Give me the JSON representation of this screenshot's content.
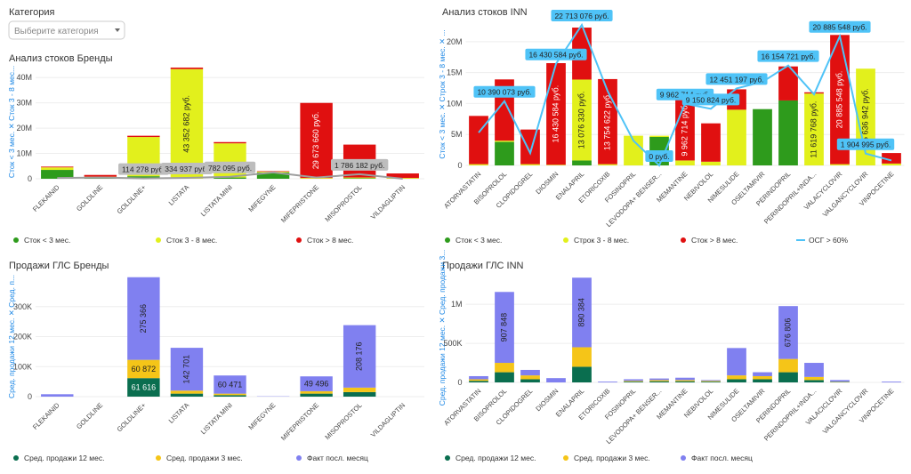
{
  "filter": {
    "label": "Категория",
    "placeholder": "Выберите категория"
  },
  "chart_data": [
    {
      "type": "bar",
      "stacked": true,
      "title": "Анализ стоков Бренды",
      "y_label": "Сток < 3 мес. ✕ Сток 3 - 8 мес...",
      "categories": [
        "FLEKAINID",
        "GOLDLINE",
        "GOLDLINE+",
        "LISTATA",
        "LISTATA MINI",
        "MIFEGYNE",
        "MIFEPRISTONE",
        "MISOPROSTOL",
        "VILDAGLIPTIN"
      ],
      "ylim": [
        0,
        45000000
      ],
      "yticks": [
        0,
        {
          "value": 10000000,
          "label": "10M"
        },
        {
          "value": 20000000,
          "label": "20M"
        },
        {
          "value": 30000000,
          "label": "30M"
        },
        {
          "value": 40000000,
          "label": "40M"
        }
      ],
      "grid": true,
      "legend": "bottom",
      "series": [
        {
          "name": "Сток < 3 мес.",
          "color": "#2e9b1c",
          "values": [
            3500000,
            300000,
            1000000,
            0,
            500000,
            2500000,
            0,
            200000,
            0
          ]
        },
        {
          "name": "Сток 3 - 8 мес.",
          "color": "#e2f01c",
          "values": [
            1000000,
            500000,
            15500000,
            43352682,
            13500000,
            300000,
            300000,
            300000,
            300000
          ],
          "value_labels": [
            null,
            null,
            null,
            "43 352 682 руб.",
            null,
            null,
            null,
            null,
            null
          ]
        },
        {
          "name": "Сток > 8 мес.",
          "color": "#e01010",
          "values": [
            300000,
            700000,
            500000,
            600000,
            500000,
            200000,
            29673660,
            13000000,
            1800000
          ],
          "value_labels": [
            null,
            null,
            null,
            null,
            null,
            null,
            "29 673 660 руб.",
            null,
            null
          ]
        },
        {
          "type": "line",
          "color": "#9e9e9e",
          "values": [
            300000,
            500000,
            114278,
            334937,
            782095,
            2500000,
            500000,
            1786182,
            0
          ],
          "value_labels": [
            null,
            null,
            "114 278 руб.",
            "334 937 руб.",
            "782 095 руб.",
            null,
            null,
            "1 786 182 руб.",
            null
          ]
        }
      ]
    },
    {
      "type": "bar",
      "stacked": true,
      "title": "Анализ стоков INN",
      "y_label": "Сток < 3 мес. ✕ Строк 3 - 8 мес. ✕ ...",
      "categories": [
        "ATORVASTATIN",
        "BISOPROLOL",
        "CLOPIDOGREL",
        "DIOSMIN",
        "ENALAPRIL",
        "ETORICOXIB",
        "FOSINOPRIL",
        "LEVODOPA+ BENSER...",
        "MEMANTINE",
        "NEBIVOLOL",
        "NIMESULIDE",
        "OSELTAMIVIR",
        "PERINDOPRIL",
        "PERINDOPRIL+INDA...",
        "VALACYCLOVIR",
        "VALGANCYCLOVIR",
        "VINPOCETINE"
      ],
      "ylim": [
        0,
        23000000
      ],
      "yticks": [
        0,
        {
          "value": 5000000,
          "label": "5M"
        },
        {
          "value": 10000000,
          "label": "10M"
        },
        {
          "value": 15000000,
          "label": "15M"
        },
        {
          "value": 20000000,
          "label": "20M"
        }
      ],
      "grid": true,
      "legend": "bottom",
      "series": [
        {
          "name": "Сток < 3 мес.",
          "color": "#2e9b1c",
          "values": [
            0,
            3800000,
            0,
            0,
            800000,
            0,
            0,
            4600000,
            0,
            0,
            0,
            9100000,
            10500000,
            0,
            0,
            0,
            0
          ]
        },
        {
          "name": "Строк 3 - 8 мес.",
          "color": "#e2f01c",
          "values": [
            200000,
            200000,
            200000,
            100000,
            13076330,
            200000,
            4800000,
            200000,
            800000,
            600000,
            9000000,
            0,
            0,
            11619768,
            200000,
            15636942,
            300000
          ],
          "value_labels": [
            null,
            null,
            null,
            null,
            "13 076 330 руб.",
            null,
            null,
            null,
            null,
            null,
            null,
            null,
            null,
            "11 619 768 руб.",
            null,
            "15 636 942 руб.",
            null
          ]
        },
        {
          "name": "Сток > 8 мес.",
          "color": "#e01010",
          "values": [
            7800000,
            9900000,
            5600000,
            16430584,
            8400000,
            13754622,
            0,
            0,
            9962714,
            6200000,
            3300000,
            0,
            5500000,
            200000,
            20885548,
            0,
            1700000
          ],
          "value_labels": [
            null,
            null,
            null,
            "16 430 584 руб.",
            null,
            "13 754 622 руб.",
            null,
            null,
            "9 962 714 руб.",
            null,
            null,
            null,
            null,
            null,
            "20 885 548 руб.",
            null,
            null
          ]
        },
        {
          "type": "line",
          "name": "ОСГ > 60%",
          "color": "#4fc3f7",
          "values": [
            5300000,
            10390073,
            2000000,
            16430584,
            22713076,
            12000000,
            4000000,
            0,
            9962714,
            9150824,
            12451197,
            13500000,
            16154721,
            11500000,
            20885548,
            1904995,
            800000
          ],
          "value_labels": [
            null,
            "10 390 073 руб.",
            null,
            "16 430 584 руб.",
            "22 713 076 руб.",
            null,
            null,
            "0 руб.",
            "9 962 714 руб.",
            "9 150 824 руб.",
            "12 451 197 руб.",
            null,
            "16 154 721 руб.",
            null,
            "20 885 548 руб.",
            "1 904 995 руб.",
            null
          ]
        }
      ]
    },
    {
      "type": "bar",
      "stacked": true,
      "title": "Продажи ГЛС Бренды",
      "y_label": "Сред. продажи 12 мес. ✕ Сред. п...",
      "categories": [
        "FLEKAINID",
        "GOLDLINE",
        "GOLDLINE+",
        "LISTATA",
        "LISTATA MINI",
        "MIFEGYNE",
        "MIFEPRISTONE",
        "MISOPROSTOL",
        "VILDAGLIPTIN"
      ],
      "ylim": [
        0,
        400000
      ],
      "yticks": [
        0,
        {
          "value": 100000,
          "label": "100K"
        },
        {
          "value": 200000,
          "label": "200K"
        },
        {
          "value": 300000,
          "label": "300K"
        }
      ],
      "grid": true,
      "legend": "bottom",
      "series": [
        {
          "name": "Сред. продажи 12 мес.",
          "color": "#0a6e4f",
          "values": [
            0,
            0,
            61616,
            10000,
            5000,
            0,
            10000,
            15000,
            0
          ],
          "value_labels": [
            null,
            null,
            "61 616",
            null,
            null,
            null,
            null,
            null,
            null
          ]
        },
        {
          "name": "Сред. продажи 3 мес.",
          "color": "#f5c518",
          "values": [
            0,
            0,
            60872,
            10000,
            5000,
            0,
            8000,
            15000,
            0
          ],
          "value_labels": [
            null,
            null,
            "60 872",
            null,
            null,
            null,
            null,
            null,
            null
          ]
        },
        {
          "name": "Факт посл. месяц",
          "color": "#8080f0",
          "values": [
            8000,
            0,
            275366,
            142701,
            60471,
            1000,
            49496,
            208176,
            0
          ],
          "value_labels": [
            null,
            null,
            "275 366",
            "142 701",
            "60 471",
            null,
            "49 496",
            "208 176",
            null
          ]
        }
      ]
    },
    {
      "type": "bar",
      "stacked": true,
      "title": "Продажи ГЛС INN",
      "y_label": "Сред. продажи 12 мес. ✕ Сред. продажи 3...",
      "categories": [
        "ATORVASTATIN",
        "BISOPROLOL",
        "CLOPIDOGREL",
        "DIOSMIN",
        "ENALAPRIL",
        "ETORICOXIB",
        "FOSINOPRIL",
        "LEVODOPA+ BENSER...",
        "MEMANTINE",
        "NEBIVOLOL",
        "NIMESULIDE",
        "OSELTAMIVIR",
        "PERINDOPRIL",
        "PERINDOPRIL+INDA...",
        "VALACICLOVIR",
        "VALGANCYCLOVIR",
        "VINPOCETINE"
      ],
      "ylim": [
        0,
        1400000
      ],
      "yticks": [
        0,
        {
          "value": 500000,
          "label": "500K"
        },
        {
          "value": 1000000,
          "label": "1M"
        }
      ],
      "grid": true,
      "legend": "bottom",
      "series": [
        {
          "name": "Сред. продажи 12 мес.",
          "color": "#0a6e4f",
          "values": [
            20000,
            130000,
            40000,
            0,
            200000,
            0,
            10000,
            15000,
            15000,
            10000,
            40000,
            40000,
            130000,
            30000,
            5000,
            0,
            0
          ]
        },
        {
          "name": "Сред. продажи 3 мес.",
          "color": "#f5c518",
          "values": [
            20000,
            120000,
            50000,
            0,
            250000,
            0,
            10000,
            15000,
            15000,
            10000,
            50000,
            40000,
            170000,
            40000,
            5000,
            0,
            0
          ]
        },
        {
          "name": "Факт посл. месяц",
          "color": "#8080f0",
          "values": [
            40000,
            907848,
            70000,
            55000,
            890384,
            10000,
            20000,
            20000,
            30000,
            10000,
            350000,
            50000,
            676806,
            180000,
            20000,
            0,
            10000
          ],
          "value_labels": [
            null,
            "907 848",
            null,
            null,
            "890 384",
            null,
            null,
            null,
            null,
            null,
            null,
            null,
            "676 806",
            null,
            null,
            null,
            null
          ]
        }
      ]
    }
  ]
}
